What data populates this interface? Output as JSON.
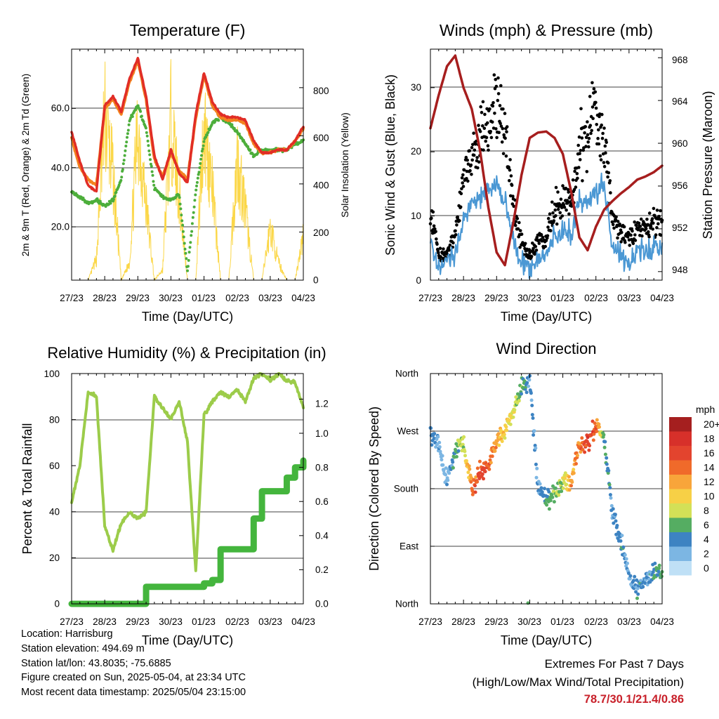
{
  "colors": {
    "temp_2m": "#e12d26",
    "temp_9m": "#f3821f",
    "dewpoint": "#4cae3b",
    "insolation": "#fbd748",
    "gust": "#000000",
    "wind": "#4b98d4",
    "pressure": "#a61e1e",
    "rh": "#9ccc4a",
    "precip": "#44b53d"
  },
  "x_ticks": [
    "27/23",
    "28/23",
    "29/23",
    "30/23",
    "01/23",
    "02/23",
    "03/23",
    "04/23"
  ],
  "panels": {
    "temperature": {
      "title": "Temperature (F)",
      "xlabel": "Time (Day/UTC)",
      "ylabel_left": "2m & 9m T (Red, Orange) & 2m Td (Green)",
      "ylabel_right": "Solar Insolation (Yellow)",
      "left_ticks": [
        "20.0",
        "40.0",
        "60.0"
      ],
      "right_ticks": [
        "0",
        "200",
        "400",
        "600",
        "800"
      ]
    },
    "winds": {
      "title": "Winds (mph) & Pressure (mb)",
      "xlabel": "Time (Day/UTC)",
      "ylabel_left": "Sonic Wind & Gust (Blue, Black)",
      "ylabel_right": "Station Pressure (Maroon)",
      "left_ticks": [
        "0",
        "10",
        "20",
        "30"
      ],
      "right_ticks": [
        "948",
        "952",
        "956",
        "960",
        "964",
        "968"
      ]
    },
    "humidity": {
      "title": "Relative Humidity (%) & Precipitation (in)",
      "xlabel": "Time (Day/UTC)",
      "ylabel_left": "Percent & Total Rainfall",
      "left_ticks": [
        "0",
        "20",
        "40",
        "60",
        "80",
        "100"
      ],
      "right_ticks": [
        "0.0",
        "0.2",
        "0.4",
        "0.6",
        "0.8",
        "1.0",
        "1.2"
      ]
    },
    "direction": {
      "title": "Wind Direction",
      "xlabel": "Time (Day/UTC)",
      "ylabel_left": "Direction (Colored By Speed)",
      "left_ticks": [
        "North",
        "East",
        "South",
        "West",
        "North"
      ],
      "legend_title": "mph",
      "legend_labels": [
        "20+",
        "18",
        "16",
        "14",
        "12",
        "10",
        "8",
        "6",
        "4",
        "2",
        "0"
      ],
      "legend_colors": [
        "#a51f1f",
        "#d7302a",
        "#e3442e",
        "#f06a2a",
        "#f8a53a",
        "#f7d046",
        "#d3e057",
        "#55ad62",
        "#3d83c2",
        "#7cb6e3",
        "#bfe0f6"
      ]
    }
  },
  "info": {
    "location": "Location: Harrisburg",
    "elevation": "Station elevation: 494.69 m",
    "latlon": "Station lat/lon: 43.8035; -75.6885",
    "created": "Figure created on Sun, 2025-05-04, at 23:34 UTC",
    "timestamp": "Most recent data timestamp: 2025/05/04 23:15:00"
  },
  "extremes": {
    "line1": "Extremes For Past 7 Days",
    "line2": "(High/Low/Max Wind/Total Precipitation)",
    "values": "78.7/30.1/21.4/0.86"
  },
  "chart_data": [
    {
      "type": "line",
      "title": "Temperature (F)",
      "xlabel": "Time (Day/UTC)",
      "ylabel": "2m & 9m T (Red, Orange) & 2m Td (Green)",
      "y2label": "Solar Insolation (Yellow)",
      "x": [
        0,
        0.25,
        0.5,
        0.75,
        1,
        1.25,
        1.5,
        1.75,
        2,
        2.25,
        2.5,
        2.75,
        3,
        3.25,
        3.5,
        3.75,
        4,
        4.25,
        4.5,
        4.75,
        5,
        5.25,
        5.5,
        5.75,
        6,
        6.25,
        6.5,
        6.75,
        7
      ],
      "x_categories": [
        "27/23",
        "28/23",
        "29/23",
        "30/23",
        "01/23",
        "02/23",
        "03/23",
        "04/23"
      ],
      "ylim": [
        2,
        80
      ],
      "y2lim": [
        0,
        960
      ],
      "series": [
        {
          "name": "2m T",
          "axis": "left",
          "values": [
            52,
            42,
            34,
            32,
            61,
            64,
            59,
            70,
            77,
            64,
            44,
            36,
            46,
            38,
            35,
            58,
            72,
            62,
            58,
            57,
            57,
            56,
            49,
            45,
            45,
            46,
            46,
            49,
            54
          ]
        },
        {
          "name": "9m T",
          "axis": "left",
          "values": [
            50,
            40,
            36,
            34,
            60,
            63,
            58,
            69,
            76,
            63,
            43,
            37,
            45,
            39,
            36,
            57,
            71,
            61,
            57,
            56,
            56,
            55,
            48,
            45,
            45,
            46,
            46,
            49,
            53
          ]
        },
        {
          "name": "2m Td",
          "axis": "left",
          "values": [
            32,
            30,
            28,
            29,
            27,
            29,
            36,
            56,
            61,
            53,
            33,
            30,
            29,
            31,
            5,
            32,
            49,
            55,
            57,
            55,
            52,
            48,
            44,
            46,
            46,
            46,
            46,
            48,
            49
          ]
        },
        {
          "name": "Solar Insolation",
          "axis": "right",
          "values": [
            0,
            0,
            0,
            120,
            940,
            600,
            0,
            100,
            880,
            430,
            0,
            60,
            920,
            480,
            0,
            0,
            900,
            520,
            0,
            0,
            700,
            400,
            0,
            0,
            300,
            100,
            0,
            0,
            250
          ]
        }
      ]
    },
    {
      "type": "line",
      "title": "Winds (mph) & Pressure (mb)",
      "xlabel": "Time (Day/UTC)",
      "ylabel": "Sonic Wind & Gust (Blue, Black)",
      "y2label": "Station Pressure (Maroon)",
      "x": [
        0,
        0.25,
        0.5,
        0.75,
        1,
        1.25,
        1.5,
        1.75,
        2,
        2.25,
        2.5,
        2.75,
        3,
        3.25,
        3.5,
        3.75,
        4,
        4.25,
        4.5,
        4.75,
        5,
        5.25,
        5.5,
        5.75,
        6,
        6.25,
        6.5,
        6.75,
        7
      ],
      "x_categories": [
        "27/23",
        "28/23",
        "29/23",
        "30/23",
        "01/23",
        "02/23",
        "03/23",
        "04/23"
      ],
      "ylim": [
        0,
        36
      ],
      "y2lim": [
        947.2,
        968.8
      ],
      "series": [
        {
          "name": "Sonic Wind",
          "axis": "left",
          "values": [
            6,
            2,
            3,
            4,
            10,
            12,
            13,
            14,
            15,
            12,
            6,
            3,
            2,
            3,
            4,
            7,
            8,
            7,
            13,
            12,
            14,
            15,
            5,
            4,
            3,
            5,
            4,
            5,
            5
          ]
        },
        {
          "name": "Gust",
          "axis": "left",
          "values": [
            11,
            4,
            4,
            7,
            16,
            19,
            22,
            25,
            28,
            24,
            12,
            6,
            4,
            6,
            7,
            11,
            12,
            12,
            21,
            22,
            26,
            22,
            10,
            8,
            6,
            8,
            8,
            9,
            10
          ]
        },
        {
          "name": "Station Pressure",
          "axis": "right",
          "values": [
            961.4,
            964.5,
            967.2,
            968.2,
            965.2,
            963.2,
            959.3,
            954.0,
            949.8,
            948.6,
            952.5,
            957.0,
            960.5,
            961.0,
            961.1,
            960.5,
            959.0,
            955.5,
            951.2,
            950.0,
            952.2,
            953.8,
            954.6,
            955.3,
            955.9,
            956.6,
            956.9,
            957.3,
            957.9
          ]
        }
      ]
    },
    {
      "type": "line",
      "title": "Relative Humidity (%) & Precipitation (in)",
      "xlabel": "Time (Day/UTC)",
      "ylabel": "Percent & Total Rainfall",
      "x": [
        0,
        0.25,
        0.5,
        0.75,
        1,
        1.25,
        1.5,
        1.75,
        2,
        2.25,
        2.5,
        2.75,
        3,
        3.25,
        3.5,
        3.75,
        4,
        4.25,
        4.5,
        4.75,
        5,
        5.25,
        5.5,
        5.75,
        6,
        6.25,
        6.5,
        6.75,
        7
      ],
      "x_categories": [
        "27/23",
        "28/23",
        "29/23",
        "30/23",
        "01/23",
        "02/23",
        "03/23",
        "04/23"
      ],
      "ylim": [
        0,
        100
      ],
      "y2lim": [
        0,
        1.35
      ],
      "series": [
        {
          "name": "Relative Humidity",
          "axis": "left",
          "values": [
            44,
            60,
            92,
            90,
            34,
            23,
            35,
            40,
            37,
            40,
            90,
            85,
            80,
            88,
            70,
            14,
            82,
            88,
            92,
            90,
            93,
            88,
            98,
            100,
            97,
            100,
            97,
            96,
            85
          ]
        },
        {
          "name": "Total Rainfall",
          "axis": "right",
          "values": [
            0,
            0,
            0,
            0,
            0,
            0,
            0,
            0,
            0,
            0.1,
            0.1,
            0.1,
            0.1,
            0.1,
            0.1,
            0.1,
            0.12,
            0.14,
            0.32,
            0.32,
            0.32,
            0.32,
            0.5,
            0.66,
            0.66,
            0.66,
            0.74,
            0.8,
            0.84
          ]
        }
      ]
    },
    {
      "type": "scatter",
      "title": "Wind Direction",
      "xlabel": "Time (Day/UTC)",
      "ylabel": "Direction (Colored By Speed)",
      "x_categories": [
        "27/23",
        "28/23",
        "29/23",
        "30/23",
        "01/23",
        "02/23",
        "03/23",
        "04/23"
      ],
      "y_categories": [
        "North",
        "East",
        "South",
        "West",
        "North"
      ],
      "ylim": [
        0,
        360
      ],
      "color_scale": {
        "label": "mph",
        "min": 0,
        "max": 20
      },
      "series": [
        {
          "name": "direction",
          "x": [
            0,
            0.25,
            0.5,
            0.75,
            1,
            1.25,
            1.5,
            1.75,
            2,
            2.25,
            2.5,
            2.75,
            3,
            3.25,
            3.5,
            3.75,
            4,
            4.25,
            4.5,
            4.75,
            5,
            5.25,
            5.5,
            5.75,
            6,
            6.25,
            6.5,
            6.75,
            7
          ],
          "values": [
            270,
            250,
            190,
            240,
            250,
            180,
            205,
            215,
            250,
            270,
            300,
            340,
            350,
            180,
            160,
            170,
            190,
            190,
            250,
            250,
            280,
            260,
            140,
            100,
            40,
            20,
            40,
            50,
            50
          ],
          "speeds": [
            4,
            2,
            3,
            5,
            8,
            14,
            16,
            14,
            12,
            10,
            8,
            6,
            4,
            3,
            5,
            6,
            8,
            12,
            14,
            16,
            15,
            6,
            3,
            4,
            3,
            4,
            3,
            4,
            6
          ]
        }
      ]
    }
  ]
}
